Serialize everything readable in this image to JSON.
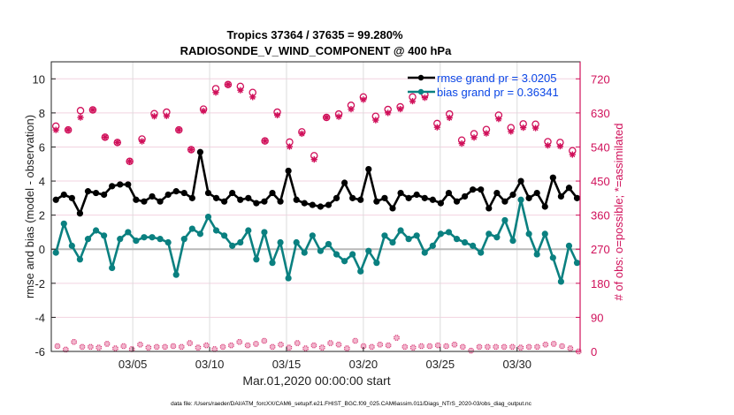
{
  "chart_data": {
    "type": "line",
    "title": [
      "Tropics 37364 / 37635 = 99.280%",
      "RADIOSONDE_V_WIND_COMPONENT @ 400 hPa"
    ],
    "xlabel": "Mar.01,2020 00:00:00 start",
    "ylabel": "rmse and bias (model - observation)",
    "y2label": "# of obs: o=possible; *=assimilated",
    "xticks": [
      {
        "day": 5,
        "label": "03/05"
      },
      {
        "day": 10,
        "label": "03/10"
      },
      {
        "day": 15,
        "label": "03/15"
      },
      {
        "day": 20,
        "label": "03/20"
      },
      {
        "day": 25,
        "label": "03/25"
      },
      {
        "day": 30,
        "label": "03/30"
      }
    ],
    "xlim_days": [
      -0.3,
      34.1
    ],
    "ylim": [
      -6,
      11
    ],
    "yticks": [
      -6,
      -4,
      -2,
      0,
      2,
      4,
      6,
      8,
      10
    ],
    "y2lim": [
      0,
      765
    ],
    "y2ticks": [
      0,
      90,
      180,
      270,
      360,
      450,
      540,
      630,
      720
    ],
    "grid": true,
    "legend_position": "top-right",
    "x_start_day": 0,
    "x_step_days": 0.5,
    "series": [
      {
        "name": "rmse grand pr = 3.0205",
        "color": "#000000",
        "values": [
          2.9,
          3.2,
          3.0,
          2.1,
          3.4,
          3.3,
          3.2,
          3.7,
          3.8,
          3.8,
          2.9,
          2.8,
          3.1,
          2.8,
          3.2,
          3.4,
          3.3,
          3.0,
          5.7,
          3.3,
          3.0,
          2.8,
          3.3,
          2.9,
          3.0,
          2.7,
          2.8,
          3.3,
          2.8,
          4.6,
          2.9,
          2.7,
          2.6,
          2.5,
          2.6,
          3.0,
          3.9,
          3.0,
          2.9,
          4.7,
          2.8,
          3.0,
          2.4,
          3.3,
          3.0,
          3.2,
          3.0,
          2.9,
          2.7,
          3.3,
          2.8,
          3.1,
          3.5,
          3.5,
          2.4,
          3.3,
          2.8,
          3.2,
          4.0,
          3.0,
          3.3,
          2.5,
          4.2,
          3.1,
          3.6,
          3.0
        ]
      },
      {
        "name": "bias grand pr = 0.36341",
        "color": "#0a8080",
        "values": [
          -0.2,
          1.5,
          0.2,
          -0.6,
          0.6,
          1.1,
          0.8,
          -1.1,
          0.6,
          1.0,
          0.5,
          0.7,
          0.7,
          0.6,
          0.4,
          -1.5,
          0.6,
          1.2,
          0.9,
          1.9,
          1.1,
          0.8,
          0.2,
          0.4,
          1.1,
          -0.6,
          1.0,
          -0.8,
          0.4,
          -1.7,
          0.4,
          -0.2,
          0.8,
          -0.1,
          0.3,
          -0.3,
          -0.7,
          -0.3,
          -1.3,
          -0.1,
          -0.8,
          0.8,
          0.4,
          1.1,
          0.6,
          0.8,
          -0.2,
          0.2,
          0.9,
          1.0,
          0.6,
          0.4,
          0.2,
          -0.2,
          0.9,
          0.7,
          1.7,
          0.5,
          2.9,
          0.9,
          -0.3,
          0.9,
          -0.5,
          -1.9,
          0.2,
          -0.8
        ]
      }
    ],
    "obs_counts": {
      "color": "#d0105a",
      "high": {
        "possible": [
          595,
          585,
          636,
          638,
          566,
          552,
          502,
          561,
          628,
          632,
          585,
          533,
          640,
          694,
          705,
          700,
          684,
          556,
          632,
          553,
          580,
          517,
          618,
          627,
          650,
          672,
          621,
          639,
          646,
          672,
          678,
          602,
          627,
          558,
          575,
          586,
          624,
          591,
          601,
          600,
          554,
          552,
          530
        ],
        "assimilated": [
          585,
          585,
          618,
          638,
          566,
          552,
          502,
          555,
          621,
          622,
          585,
          533,
          635,
          684,
          705,
          690,
          672,
          556,
          624,
          541,
          575,
          507,
          618,
          620,
          640,
          665,
          611,
          630,
          640,
          661,
          670,
          592,
          617,
          549,
          565,
          576,
          614,
          581,
          591,
          590,
          544,
          542,
          520
        ]
      },
      "low_assimilated": [
        14,
        5,
        25,
        12,
        12,
        10,
        20,
        8,
        14,
        6,
        18,
        10,
        12,
        12,
        14,
        12,
        22,
        10,
        16,
        6,
        12,
        16,
        25,
        16,
        20,
        28,
        12,
        18,
        10,
        22,
        8,
        16,
        10,
        22,
        18,
        8,
        28,
        14,
        12,
        18,
        16,
        36,
        12,
        10,
        14,
        14,
        16,
        14,
        18,
        12,
        2,
        12,
        12,
        12,
        12,
        12,
        10,
        12,
        12,
        18,
        20,
        14,
        8,
        0
      ]
    }
  },
  "footer": "data file: /Users/raeder/DAI/ATM_forcXX/CAM6_setup/f.e21.FHIST_BGC.f09_025.CAM6assim.011/Diags_NTrS_2020-03/obs_diag_output.nc"
}
